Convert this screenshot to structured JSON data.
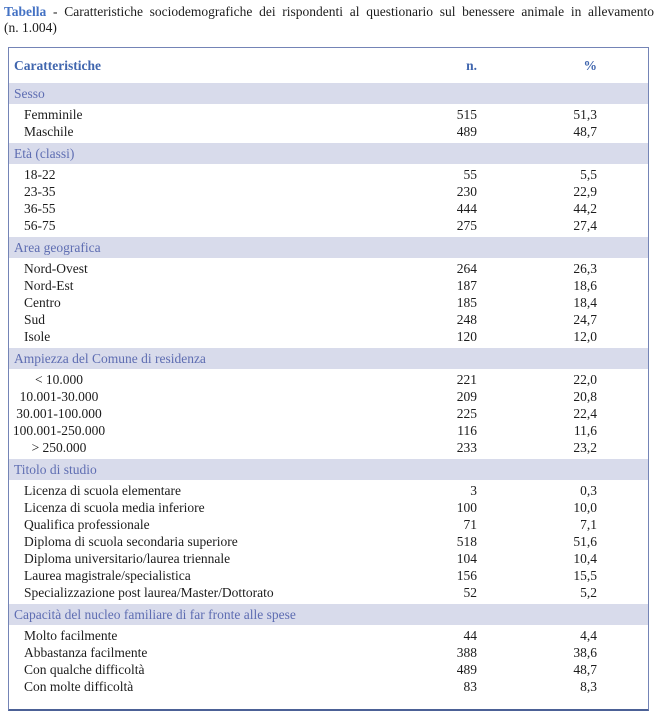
{
  "caption": {
    "label": "Tabella",
    "separator": " - ",
    "body": "Caratteristiche sociodemografiche dei rispondenti al questionario sul benessere animale in allevamento",
    "sample": "(n. 1.004)"
  },
  "colors": {
    "accent_blue": "#4472c4",
    "header_text": "#4066ae",
    "section_band_bg": "#d8dbeb",
    "section_band_text": "#5e6db2",
    "table_border": "#7484b6"
  },
  "table": {
    "columns": [
      "Caratteristiche",
      "n.",
      "%"
    ],
    "sections": [
      {
        "name": "Sesso",
        "rows": [
          [
            "Femminile",
            "515",
            "51,3"
          ],
          [
            "Maschile",
            "489",
            "48,7"
          ]
        ]
      },
      {
        "name": "Età (classi)",
        "rows": [
          [
            "18-22",
            "55",
            "5,5"
          ],
          [
            "23-35",
            "230",
            "22,9"
          ],
          [
            "36-55",
            "444",
            "44,2"
          ],
          [
            "56-75",
            "275",
            "27,4"
          ]
        ]
      },
      {
        "name": "Area geografica",
        "rows": [
          [
            "Nord-Ovest",
            "264",
            "26,3"
          ],
          [
            "Nord-Est",
            "187",
            "18,6"
          ],
          [
            "Centro",
            "185",
            "18,4"
          ],
          [
            "Sud",
            "248",
            "24,7"
          ],
          [
            "Isole",
            "120",
            "12,0"
          ]
        ]
      },
      {
        "name": "Ampiezza del Comune di residenza",
        "centered": true,
        "rows": [
          [
            "< 10.000",
            "221",
            "22,0"
          ],
          [
            "10.001-30.000",
            "209",
            "20,8"
          ],
          [
            "30.001-100.000",
            "225",
            "22,4"
          ],
          [
            "100.001-250.000",
            "116",
            "11,6"
          ],
          [
            "> 250.000",
            "233",
            "23,2"
          ]
        ]
      },
      {
        "name": "Titolo di studio",
        "rows": [
          [
            "Licenza di scuola elementare",
            "3",
            "0,3"
          ],
          [
            "Licenza di scuola media inferiore",
            "100",
            "10,0"
          ],
          [
            "Qualifica professionale",
            "71",
            "7,1"
          ],
          [
            "Diploma di scuola secondaria superiore",
            "518",
            "51,6"
          ],
          [
            "Diploma universitario/laurea triennale",
            "104",
            "10,4"
          ],
          [
            "Laurea magistrale/specialistica",
            "156",
            "15,5"
          ],
          [
            "Specializzazione post laurea/Master/Dottorato",
            "52",
            "5,2"
          ]
        ]
      },
      {
        "name": "Capacità del nucleo familiare di far fronte alle spese",
        "rows": [
          [
            "Molto facilmente",
            "44",
            "4,4"
          ],
          [
            "Abbastanza facilmente",
            "388",
            "38,6"
          ],
          [
            "Con qualche difficoltà",
            "489",
            "48,7"
          ],
          [
            "Con molte difficoltà",
            "83",
            "8,3"
          ]
        ]
      }
    ]
  }
}
